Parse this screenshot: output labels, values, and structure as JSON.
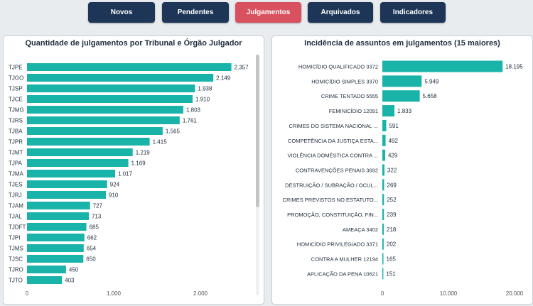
{
  "nav": {
    "buttons": [
      {
        "label": "Novos",
        "active": false
      },
      {
        "label": "Pendentes",
        "active": false
      },
      {
        "label": "Julgamentos",
        "active": true
      },
      {
        "label": "Arquivados",
        "active": false
      },
      {
        "label": "Indicadores",
        "active": false
      }
    ]
  },
  "colors": {
    "bar": "#1ab3aa",
    "nav": "#1d3557",
    "nav_active": "#d9505f"
  },
  "chart_data": [
    {
      "type": "bar",
      "orientation": "horizontal",
      "title": "Quantidade de julgamentos por Tribunal e Órgão Julgador",
      "categories": [
        "TJPE",
        "TJGO",
        "TJSP",
        "TJCE",
        "TJMG",
        "TJRS",
        "TJBA",
        "TJPR",
        "TJMT",
        "TJPA",
        "TJMA",
        "TJES",
        "TJRJ",
        "TJAM",
        "TJAL",
        "TJDFT",
        "TJPI",
        "TJMS",
        "TJSC",
        "TJRO",
        "TJTO"
      ],
      "values": [
        2357,
        2149,
        1938,
        1910,
        1803,
        1761,
        1565,
        1415,
        1219,
        1169,
        1017,
        924,
        910,
        727,
        713,
        685,
        662,
        654,
        650,
        450,
        403
      ],
      "value_labels": [
        "2.357",
        "2.149",
        "1.938",
        "1.910",
        "1.803",
        "1.761",
        "1.565",
        "1.415",
        "1.219",
        "1.169",
        "1.017",
        "924",
        "910",
        "727",
        "713",
        "685",
        "662",
        "654",
        "650",
        "450",
        "403"
      ],
      "xlim": [
        0,
        2500
      ],
      "xticks": [
        0,
        1000,
        2000
      ],
      "xtick_labels": [
        "0",
        "1.000",
        "2.000"
      ]
    },
    {
      "type": "bar",
      "orientation": "horizontal",
      "title": "Incidência de assuntos em julgamentos (15 maiores)",
      "categories": [
        "HOMICÍDIO QUALIFICADO 3372",
        "HOMICÍDIO SIMPLES 3370",
        "CRIME TENTADO 5555",
        "FEMINICÍDIO 12091",
        "CRIMES DO SISTEMA NACIONAL ...",
        "COMPETÊNCIA DA JUSTIÇA ESTA...",
        "VIOLÊNCIA DOMÉSTICA CONTRA ...",
        "CONTRAVENÇÕES PENAIS 3692",
        "DESTRUIÇÃO / SUBRAÇÃO / OCUL...",
        "CRIMES PREVISTOS NO ESTATUTO...",
        "PROMOÇÃO, CONSTITUIÇÃO, FIN...",
        "AMEAÇA 3402",
        "HOMICÍDIO PRIVILEGIADO 3371",
        "CONTRA A MULHER 12194",
        "APLICAÇÃO DA PENA 10621"
      ],
      "values": [
        18195,
        5949,
        5658,
        1833,
        591,
        492,
        429,
        322,
        269,
        252,
        239,
        218,
        202,
        165,
        151
      ],
      "value_labels": [
        "18.195",
        "5.949",
        "5.658",
        "1.833",
        "591",
        "492",
        "429",
        "322",
        "269",
        "252",
        "239",
        "218",
        "202",
        "165",
        "151"
      ],
      "xlim": [
        0,
        20000
      ],
      "xticks": [
        0,
        10000,
        20000
      ],
      "xtick_labels": [
        "0",
        "10.000",
        "20.000"
      ]
    }
  ]
}
